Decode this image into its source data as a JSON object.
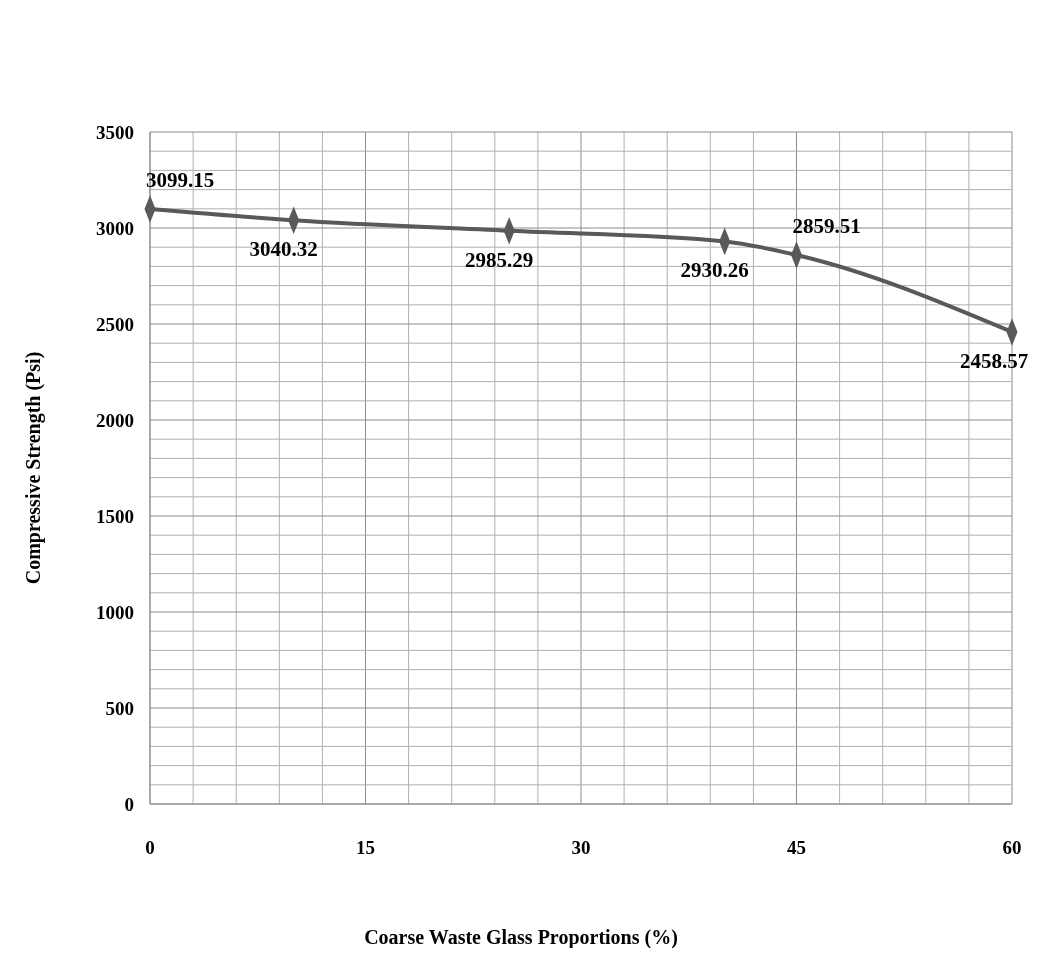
{
  "chart_data": {
    "type": "line",
    "xlabel": "Coarse Waste Glass Proportions (%)",
    "ylabel": "Compressive Strength  (Psi)",
    "x": [
      0,
      10,
      25,
      40,
      45,
      60
    ],
    "series": [
      {
        "color": "#595959",
        "values": [
          3099.15,
          3040.32,
          2985.29,
          2930.26,
          2859.51,
          2458.57
        ]
      }
    ],
    "xlim": [
      0,
      60
    ],
    "xticks": [
      0,
      {
        "value": 3,
        "label": null
      },
      {
        "value": 6,
        "label": null
      },
      {
        "value": 9,
        "label": null
      },
      {
        "value": 12,
        "label": null
      },
      15,
      {
        "value": 18,
        "label": null
      },
      {
        "value": 21,
        "label": null
      },
      {
        "value": 24,
        "label": null
      },
      {
        "value": 27,
        "label": null
      },
      30,
      {
        "value": 33,
        "label": null
      },
      {
        "value": 36,
        "label": null
      },
      {
        "value": 39,
        "label": null
      },
      {
        "value": 42,
        "label": null
      },
      45,
      {
        "value": 48,
        "label": null
      },
      {
        "value": 51,
        "label": null
      },
      {
        "value": 54,
        "label": null
      },
      {
        "value": 57,
        "label": null
      },
      60
    ],
    "ylim": [
      0,
      3500
    ],
    "yticks": [
      0,
      {
        "value": 100,
        "label": null
      },
      {
        "value": 200,
        "label": null
      },
      {
        "value": 300,
        "label": null
      },
      {
        "value": 400,
        "label": null
      },
      500,
      {
        "value": 600,
        "label": null
      },
      {
        "value": 700,
        "label": null
      },
      {
        "value": 800,
        "label": null
      },
      {
        "value": 900,
        "label": null
      },
      1000,
      {
        "value": 1100,
        "label": null
      },
      {
        "value": 1200,
        "label": null
      },
      {
        "value": 1300,
        "label": null
      },
      {
        "value": 1400,
        "label": null
      },
      1500,
      {
        "value": 1600,
        "label": null
      },
      {
        "value": 1700,
        "label": null
      },
      {
        "value": 1800,
        "label": null
      },
      {
        "value": 1900,
        "label": null
      },
      2000,
      {
        "value": 2100,
        "label": null
      },
      {
        "value": 2200,
        "label": null
      },
      {
        "value": 2300,
        "label": null
      },
      {
        "value": 2400,
        "label": null
      },
      2500,
      {
        "value": 2600,
        "label": null
      },
      {
        "value": 2700,
        "label": null
      },
      {
        "value": 2800,
        "label": null
      },
      {
        "value": 2900,
        "label": null
      },
      3000,
      {
        "value": 3100,
        "label": null
      },
      {
        "value": 3200,
        "label": null
      },
      {
        "value": 3300,
        "label": null
      },
      {
        "value": 3400,
        "label": null
      },
      3500
    ],
    "grid": true,
    "marker": "diamond",
    "line_style": "solid",
    "data_labels": true
  }
}
